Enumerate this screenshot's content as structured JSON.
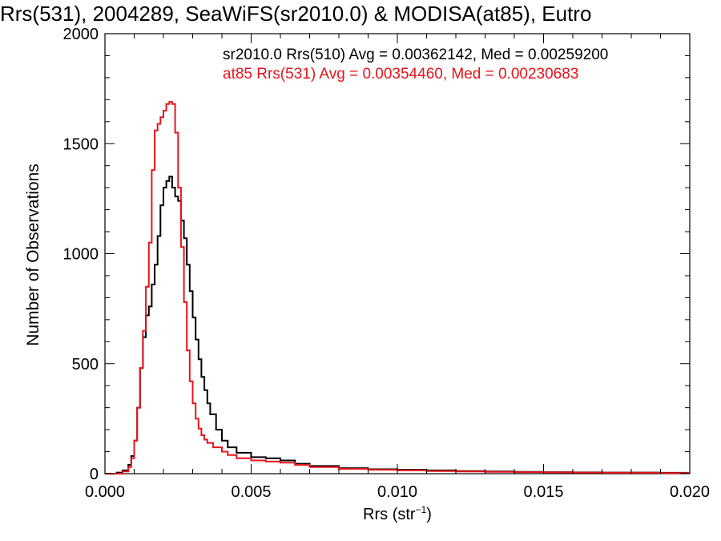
{
  "chart_data": {
    "type": "line",
    "title": "Rrs(531), 2004289, SeaWiFS(sr2010.0) & MODISA(at85), Eutro",
    "xlabel_main": "Rrs (str",
    "xlabel_sup": "−1",
    "xlabel_close": ")",
    "ylabel": "Number of Observations",
    "xlim": [
      0.0,
      0.02
    ],
    "ylim": [
      0,
      2000
    ],
    "x_ticks": [
      0.0,
      0.005,
      0.01,
      0.015,
      0.02
    ],
    "x_tick_labels": [
      "0.000",
      "0.005",
      "0.010",
      "0.015",
      "0.020"
    ],
    "y_ticks": [
      0,
      500,
      1000,
      1500,
      2000
    ],
    "y_tick_labels": [
      "0",
      "500",
      "1000",
      "1500",
      "2000"
    ],
    "annotations": [
      "sr2010.0 Rrs(510) Avg = 0.00362142, Med = 0.00259200",
      "at85 Rrs(531) Avg = 0.00354460, Med = 0.00230683"
    ],
    "colors": {
      "series_black": "#000000",
      "series_red": "#e8141c"
    },
    "series": [
      {
        "color": "#000000",
        "x": [
          0.0,
          0.0004,
          0.0006,
          0.0008,
          0.0009,
          0.001,
          0.0011,
          0.0012,
          0.0013,
          0.0014,
          0.0015,
          0.0016,
          0.0017,
          0.0018,
          0.0019,
          0.002,
          0.0021,
          0.0022,
          0.0023,
          0.0024,
          0.0025,
          0.0026,
          0.0027,
          0.0028,
          0.0029,
          0.003,
          0.0031,
          0.0032,
          0.0033,
          0.0034,
          0.0035,
          0.0036,
          0.0038,
          0.004,
          0.0042,
          0.0045,
          0.005,
          0.0055,
          0.006,
          0.0065,
          0.007,
          0.008,
          0.009,
          0.01,
          0.011,
          0.012,
          0.013,
          0.014,
          0.015,
          0.016,
          0.017,
          0.018,
          0.019,
          0.0199
        ],
        "y": [
          0,
          5,
          15,
          40,
          80,
          150,
          300,
          480,
          620,
          720,
          760,
          860,
          950,
          1080,
          1220,
          1300,
          1330,
          1350,
          1300,
          1260,
          1240,
          1150,
          1070,
          950,
          830,
          710,
          610,
          520,
          440,
          380,
          320,
          270,
          200,
          150,
          120,
          95,
          75,
          70,
          60,
          45,
          35,
          25,
          20,
          18,
          15,
          12,
          10,
          8,
          7,
          6,
          5,
          5,
          4,
          3
        ]
      },
      {
        "color": "#e8141c",
        "x": [
          0.0,
          0.0006,
          0.0008,
          0.0009,
          0.001,
          0.0011,
          0.0012,
          0.0013,
          0.0014,
          0.0015,
          0.0016,
          0.0017,
          0.0018,
          0.0019,
          0.002,
          0.0021,
          0.0022,
          0.0023,
          0.0024,
          0.0025,
          0.0026,
          0.0027,
          0.0028,
          0.0029,
          0.003,
          0.0031,
          0.0032,
          0.0033,
          0.0034,
          0.0035,
          0.0037,
          0.004,
          0.0042,
          0.0045,
          0.005,
          0.0055,
          0.006,
          0.0065,
          0.007,
          0.008,
          0.009,
          0.01,
          0.011,
          0.012,
          0.013,
          0.014,
          0.015,
          0.016,
          0.017,
          0.018,
          0.019,
          0.0199
        ],
        "y": [
          0,
          10,
          30,
          70,
          150,
          300,
          480,
          650,
          850,
          1050,
          1380,
          1560,
          1590,
          1620,
          1650,
          1680,
          1690,
          1680,
          1550,
          1300,
          1030,
          780,
          560,
          420,
          320,
          250,
          205,
          175,
          155,
          140,
          120,
          100,
          85,
          70,
          60,
          55,
          50,
          40,
          30,
          22,
          18,
          15,
          12,
          10,
          8,
          7,
          6,
          5,
          4,
          4,
          3,
          2
        ]
      }
    ]
  }
}
